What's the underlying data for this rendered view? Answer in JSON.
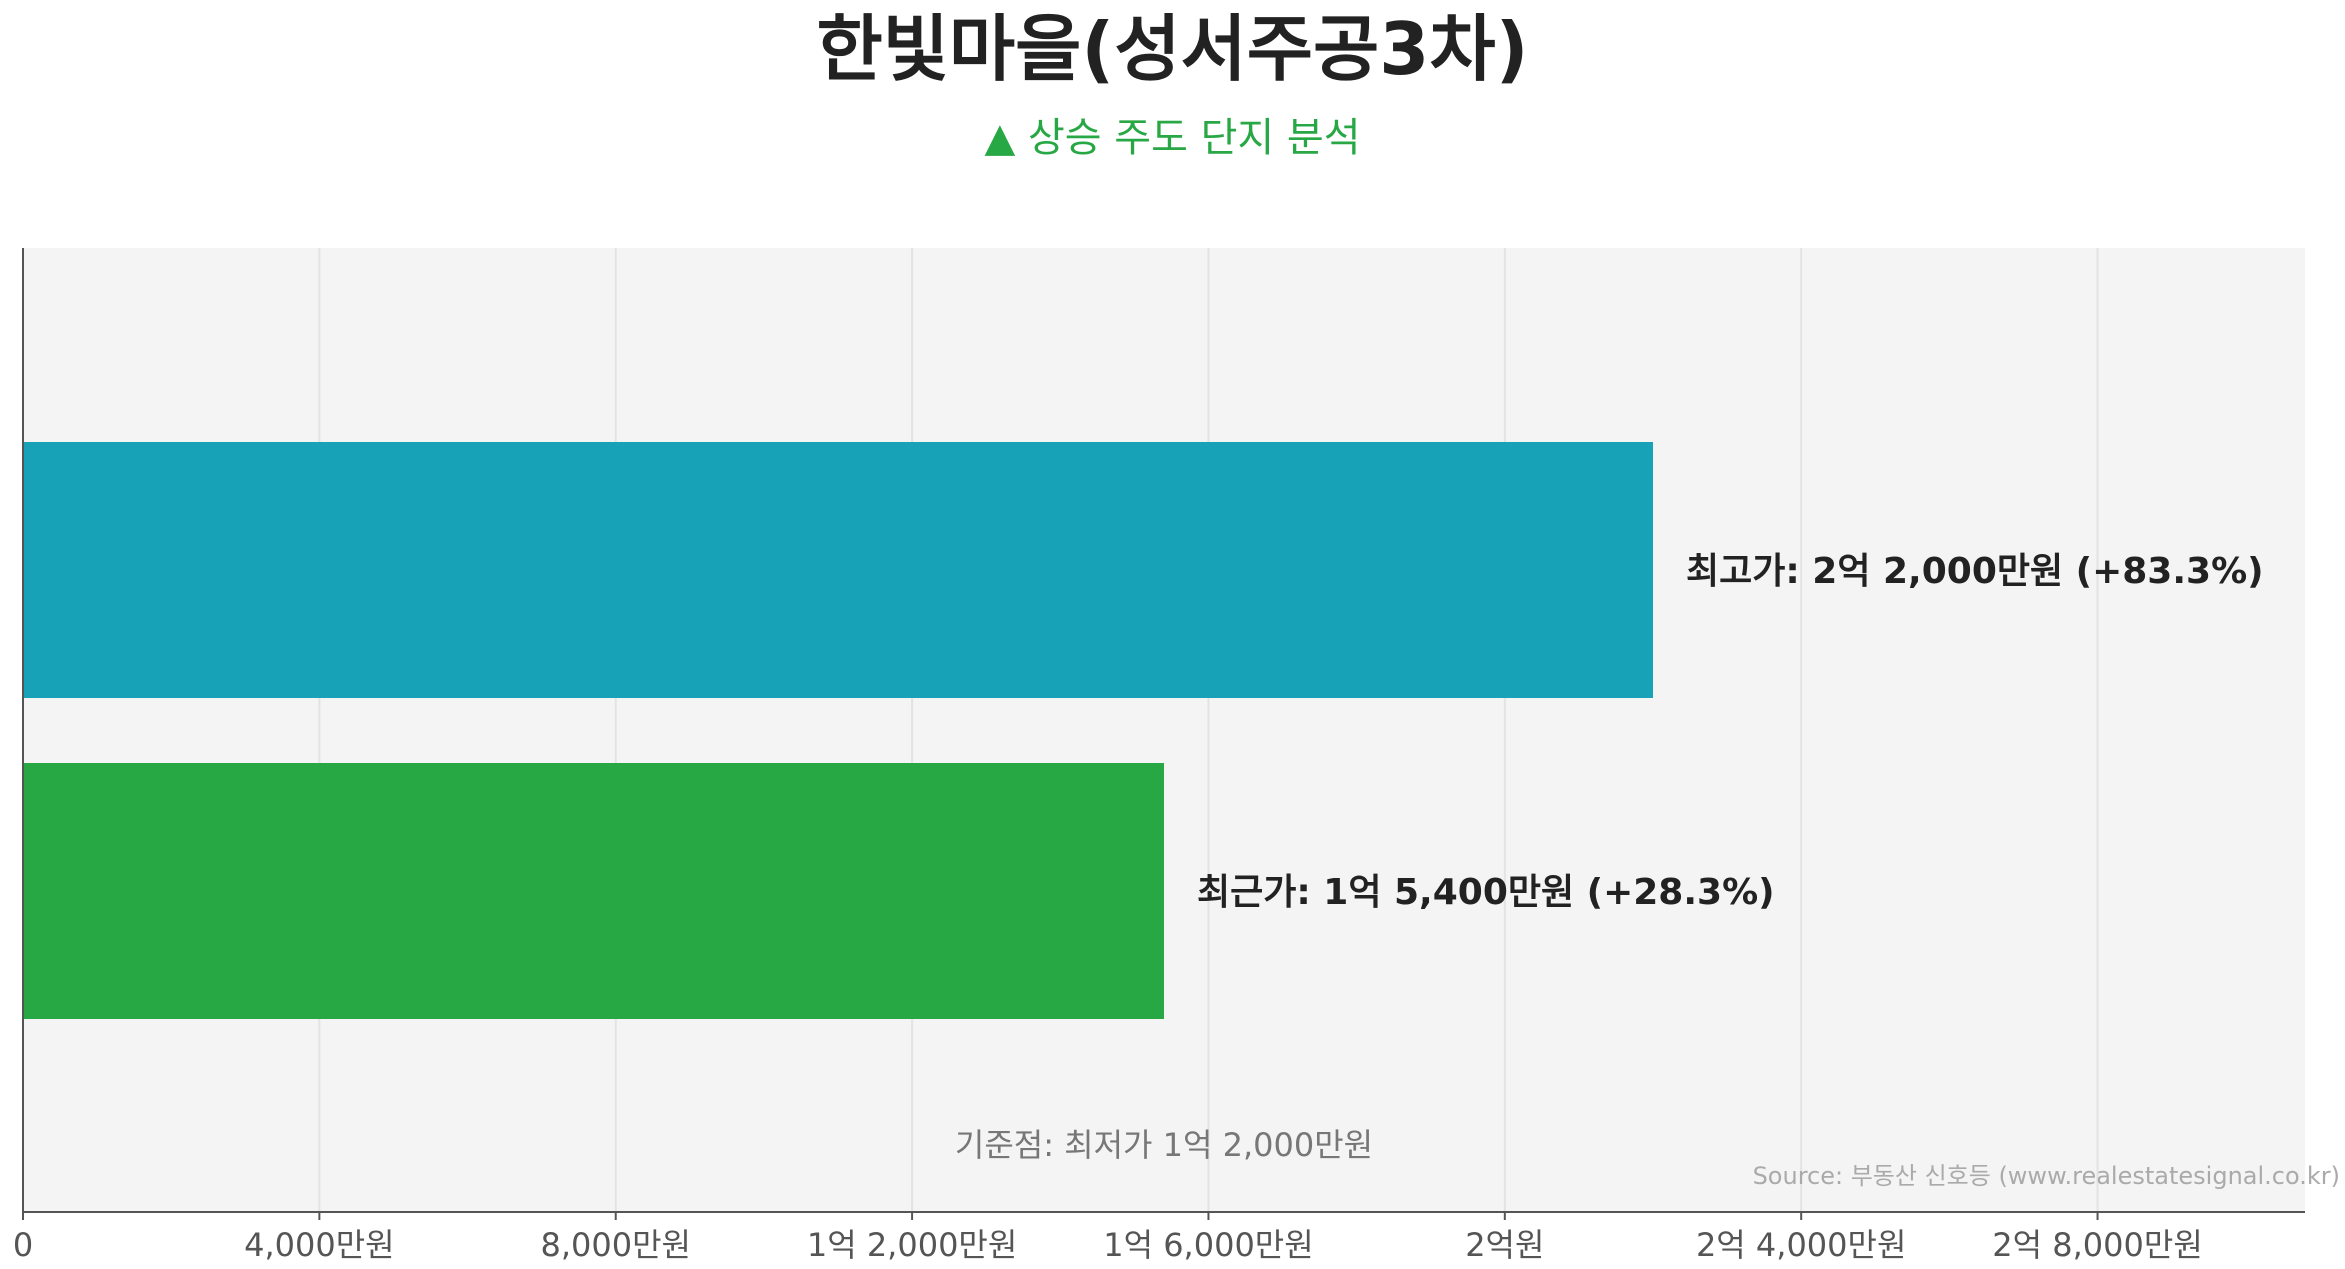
{
  "chart_data": {
    "type": "bar",
    "orientation": "horizontal",
    "title": "한빛마을(성서주공3차)",
    "subtitle": "▲ 상승 주도 단지 분석",
    "categories": [
      "최고가",
      "최근가"
    ],
    "values": [
      22000,
      15400
    ],
    "value_unit": "만원",
    "data_labels": [
      "최고가: 2억 2,000만원 (+83.3%)",
      "최근가: 1억 5,400만원 (+28.3%)"
    ],
    "bar_colors": [
      "#18a2b8",
      "#28a745"
    ],
    "x_ticks": [
      0,
      4000,
      8000,
      12000,
      16000,
      20000,
      24000,
      28000
    ],
    "x_tick_labels": [
      "0",
      "4,000만원",
      "8,000만원",
      "1억 2,000만원",
      "1억 6,000만원",
      "2억원",
      "2억 4,000만원",
      "2억 8,000만원"
    ],
    "xlim": [
      0,
      30800
    ],
    "xlabel": "",
    "ylabel": "",
    "grid": true,
    "reference_note": "기준점: 최저가 1억 2,000만원",
    "source": "Source: 부동산 신호등 (www.realestatesignal.co.kr)"
  },
  "colors": {
    "subtitle": "#28a745",
    "plot_background": "#f4f4f4",
    "grid": "#e3e3e3",
    "axis": "#555555"
  }
}
